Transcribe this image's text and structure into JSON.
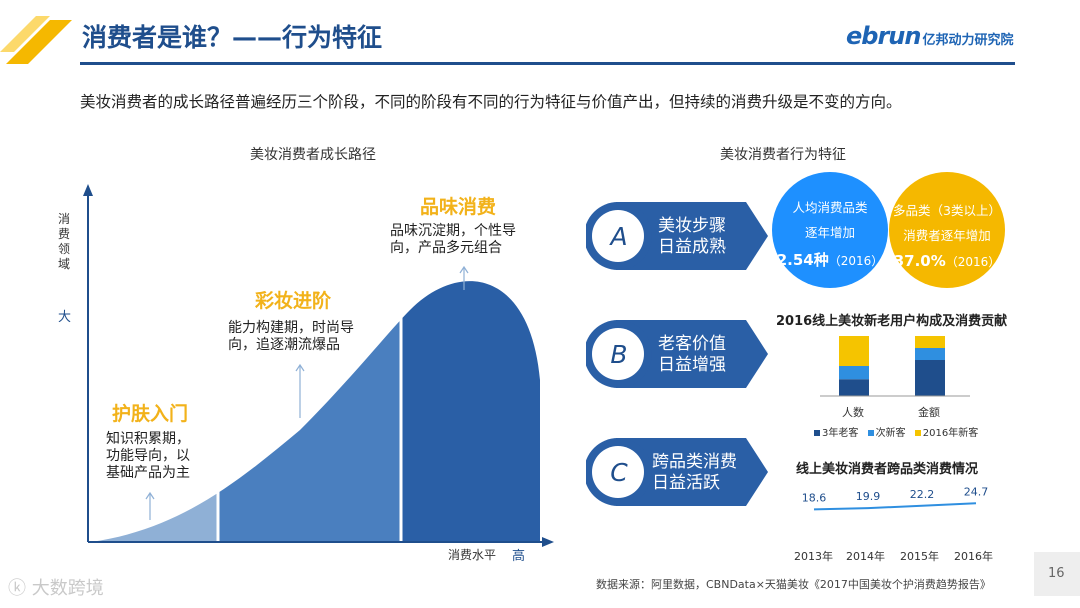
{
  "header": {
    "title": "消费者是谁？——行为特征",
    "brand_word": "ebrun",
    "brand_org": "亿邦动力研究院"
  },
  "subtitle": "美妆消费者的成长路径普遍经历三个阶段，不同的阶段有不同的行为特征与价值产出，但持续的消费升级是不变的方向。",
  "left_panel": {
    "title": "美妆消费者成长路径",
    "y_axis_label": [
      "消",
      "费",
      "领",
      "域"
    ],
    "y_axis_max": "大",
    "x_axis_label": "消费水平",
    "x_axis_max": "高",
    "stages": [
      {
        "name": "护肤入门",
        "desc": [
          "知识积累期，",
          "功能导向，以",
          "基础产品为主"
        ]
      },
      {
        "name": "彩妆进阶",
        "desc": [
          "能力构建期，时尚导",
          "向，追逐潮流爆品"
        ]
      },
      {
        "name": "品味消费",
        "desc": [
          "品味沉淀期，个性导",
          "向，产品多元组合"
        ]
      }
    ]
  },
  "right_panel": {
    "title": "美妆消费者行为特征",
    "features": [
      {
        "letter": "A",
        "text": [
          "美妆步骤",
          "日益成熟"
        ]
      },
      {
        "letter": "B",
        "text": [
          "老客价值",
          "日益增强"
        ]
      },
      {
        "letter": "C",
        "text": [
          "跨品类消费",
          "日益活跃"
        ]
      }
    ],
    "bubbles": [
      {
        "lines": [
          "人均消费品类",
          "逐年增加"
        ],
        "value": "2.54种",
        "note": "（2016）",
        "color": "#1e90ff"
      },
      {
        "lines": [
          "多品类（3类以上）",
          "消费者逐年增加"
        ],
        "value": "37.0%",
        "note": "（2016）",
        "color": "#f5b800"
      }
    ]
  },
  "chart_data": [
    {
      "type": "bar",
      "title": "2016线上美妆新老用户构成及消费贡献",
      "stacked": true,
      "categories": [
        "人数",
        "金额"
      ],
      "series": [
        {
          "name": "3年老客",
          "color": "#1f4e8c",
          "values": [
            0.28,
            0.6
          ]
        },
        {
          "name": "次新客",
          "color": "#2f8fe0",
          "values": [
            0.22,
            0.2
          ]
        },
        {
          "name": "2016年新客",
          "color": "#f5c400",
          "values": [
            0.5,
            0.2
          ]
        }
      ],
      "ylim": [
        0,
        1
      ]
    },
    {
      "type": "line",
      "title": "线上美妆消费者跨品类消费情况",
      "x": [
        "2013年",
        "2014年",
        "2015年",
        "2016年"
      ],
      "series": [
        {
          "color": "#2f8fe0",
          "values": [
            18.6,
            19.9,
            22.2,
            24.7
          ]
        }
      ],
      "ylim": [
        0,
        60
      ]
    }
  ],
  "footer": {
    "source": "数据来源：阿里数据，CBNData×天猫美妆《2017中国美妆个护消费趋势报告》",
    "page_number": "16",
    "watermark": "大数跨境"
  }
}
